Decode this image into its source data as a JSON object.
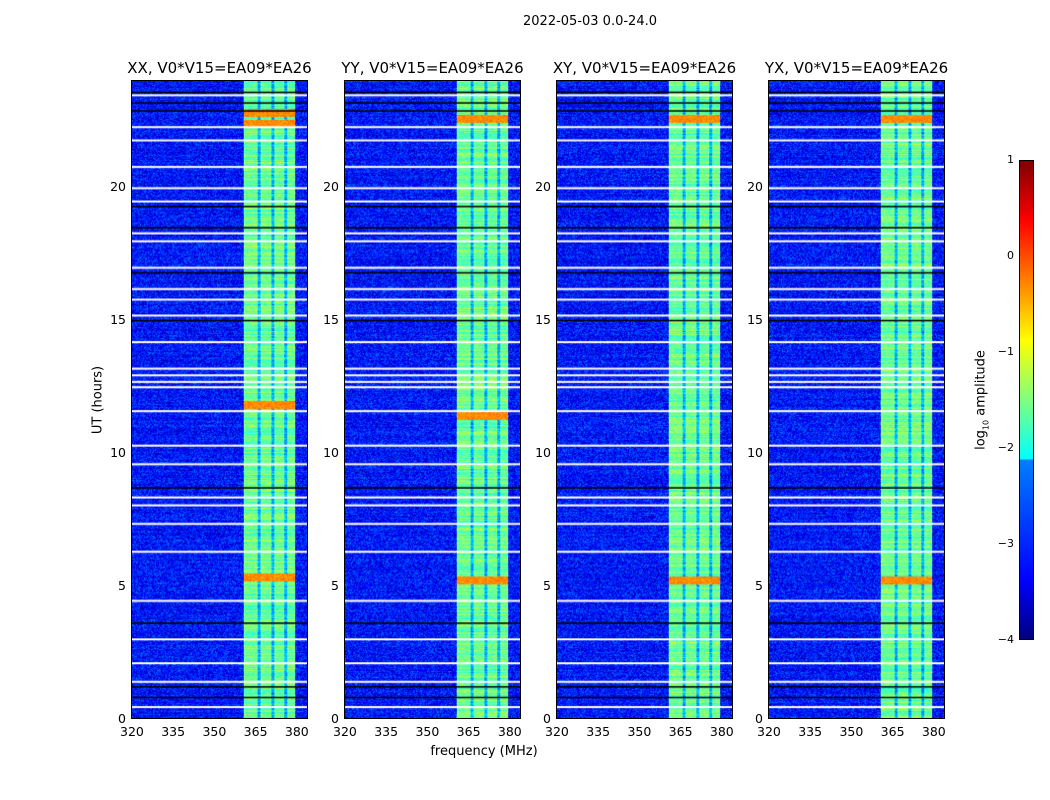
{
  "suptitle": "2022-05-03 0.0-24.0",
  "chart_data": {
    "type": "heatmap",
    "title": "2022-05-03 0.0-24.0",
    "xlabel": "frequency (MHz)",
    "ylabel": "UT (hours)",
    "xlim": [
      320,
      384.4
    ],
    "ylim": [
      0,
      24
    ],
    "xticks": [
      "320",
      "335",
      "350",
      "365",
      "380"
    ],
    "xtick_values": [
      320,
      335,
      350,
      365,
      380
    ],
    "yticks": [
      "0",
      "5",
      "10",
      "15",
      "20"
    ],
    "ytick_values": [
      0,
      5,
      10,
      15,
      20
    ],
    "panels": [
      {
        "title": "XX, V0*V15=EA09*EA26",
        "hot_hours": [
          22.4,
          22.8,
          11.8,
          5.3
        ]
      },
      {
        "title": "YY, V0*V15=EA09*EA26",
        "hot_hours": [
          22.6,
          11.4,
          5.2
        ]
      },
      {
        "title": "XY, V0*V15=EA09*EA26",
        "hot_hours": [
          22.6,
          5.2
        ]
      },
      {
        "title": "YX, V0*V15=EA09*EA26",
        "hot_hours": [
          22.6,
          5.2
        ]
      }
    ],
    "background_log10_amplitude": -3.3,
    "rfi_band_mhz": [
      361,
      380
    ],
    "rfi_band_log10_amplitude": -1.6,
    "rfi_gaps_mhz": [
      366.5,
      371.5,
      376.5
    ],
    "flagged_hours_white": [
      0.45,
      1.4,
      2.1,
      3.0,
      4.45,
      6.3,
      7.35,
      8.05,
      8.35,
      9.6,
      10.3,
      11.6,
      12.5,
      12.7,
      12.95,
      13.2,
      14.2,
      15.2,
      15.8,
      16.2,
      17.0,
      18.0,
      18.3,
      19.5,
      20.0,
      20.8,
      21.8,
      22.3,
      23.5
    ],
    "flagged_hours_black": [
      0.8,
      1.2,
      3.6,
      8.7,
      15.0,
      16.8,
      18.5,
      19.3,
      22.9,
      23.2,
      23.6
    ],
    "colorbar": {
      "label": "log10 amplitude",
      "label_main": "log",
      "label_sub": "10",
      "label_rest": " amplitude",
      "range": [
        -4,
        1
      ],
      "ticks": [
        "1",
        "0",
        "−1",
        "−2",
        "−3",
        "−4"
      ],
      "tick_values": [
        1,
        0,
        -1,
        -2,
        -3,
        -4
      ],
      "colormap": "jet"
    }
  }
}
